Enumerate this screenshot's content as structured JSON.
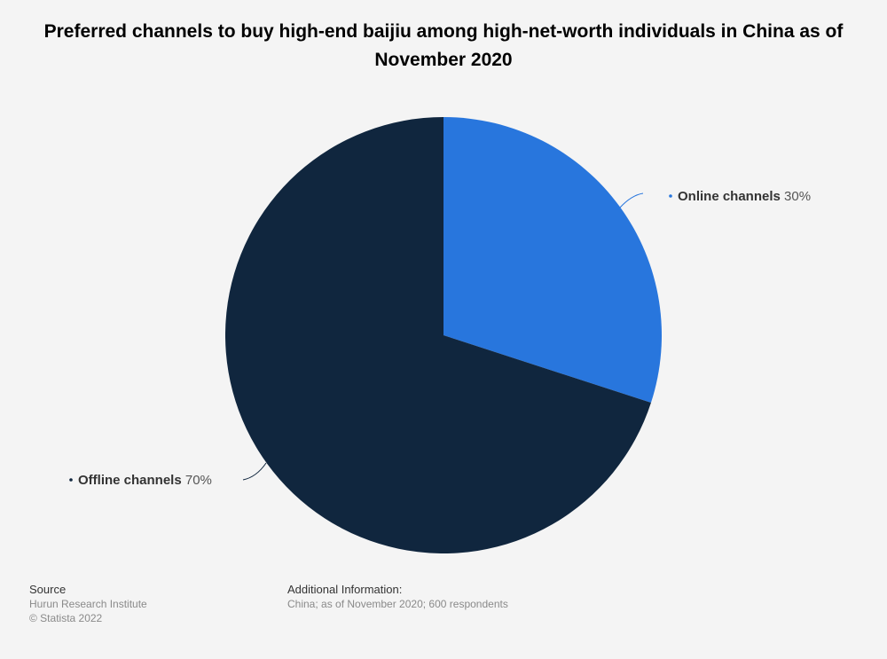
{
  "chart_data": {
    "type": "pie",
    "title": "Preferred channels to buy high-end baijiu among high-net-worth individuals in China as of November 2020",
    "slices": [
      {
        "label": "Online channels",
        "value": 30,
        "value_label": "30%",
        "color": "#2876dd"
      },
      {
        "label": "Offline channels",
        "value": 70,
        "value_label": "70%",
        "color": "#10263e"
      }
    ]
  },
  "footer": {
    "source_heading": "Source",
    "source_text": "Hurun Research Institute",
    "copyright": "© Statista 2022",
    "info_heading": "Additional Information:",
    "info_text": "China; as of November 2020; 600 respondents"
  }
}
